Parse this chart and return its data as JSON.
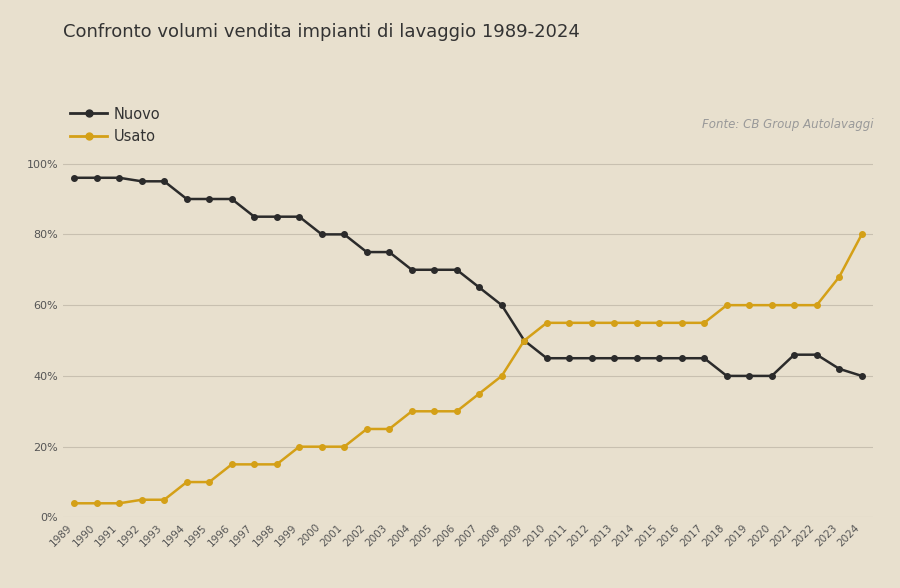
{
  "title": "Confronto volumi vendita impianti di lavaggio 1989-2024",
  "source": "Fonte: CB Group Autolavaggi",
  "background_color": "#e8e0ce",
  "nuovo_color": "#2b2b2b",
  "usato_color": "#d4a017",
  "years": [
    1989,
    1990,
    1991,
    1992,
    1993,
    1994,
    1995,
    1996,
    1997,
    1998,
    1999,
    2000,
    2001,
    2002,
    2003,
    2004,
    2005,
    2006,
    2007,
    2008,
    2009,
    2010,
    2011,
    2012,
    2013,
    2014,
    2015,
    2016,
    2017,
    2018,
    2019,
    2020,
    2021,
    2022,
    2023,
    2024
  ],
  "nuovo": [
    0.96,
    0.96,
    0.96,
    0.95,
    0.95,
    0.9,
    0.9,
    0.9,
    0.85,
    0.85,
    0.85,
    0.8,
    0.8,
    0.75,
    0.75,
    0.7,
    0.7,
    0.7,
    0.65,
    0.6,
    0.5,
    0.45,
    0.45,
    0.45,
    0.45,
    0.45,
    0.45,
    0.45,
    0.45,
    0.4,
    0.4,
    0.4,
    0.46,
    0.46,
    0.42,
    0.4
  ],
  "usato": [
    0.04,
    0.04,
    0.04,
    0.05,
    0.05,
    0.1,
    0.1,
    0.15,
    0.15,
    0.15,
    0.2,
    0.2,
    0.2,
    0.25,
    0.25,
    0.3,
    0.3,
    0.3,
    0.35,
    0.4,
    0.5,
    0.55,
    0.55,
    0.55,
    0.55,
    0.55,
    0.55,
    0.55,
    0.55,
    0.6,
    0.6,
    0.6,
    0.6,
    0.6,
    0.68,
    0.8
  ],
  "ylim": [
    0,
    1.05
  ],
  "yticks": [
    0.0,
    0.2,
    0.4,
    0.6,
    0.8,
    1.0
  ],
  "ytick_labels": [
    "0%",
    "20%",
    "40%",
    "60%",
    "80%",
    "100%"
  ],
  "legend_nuovo": "Nuovo",
  "legend_usato": "Usato",
  "title_fontsize": 13,
  "source_fontsize": 8.5,
  "tick_fontsize": 8,
  "legend_fontsize": 10.5
}
